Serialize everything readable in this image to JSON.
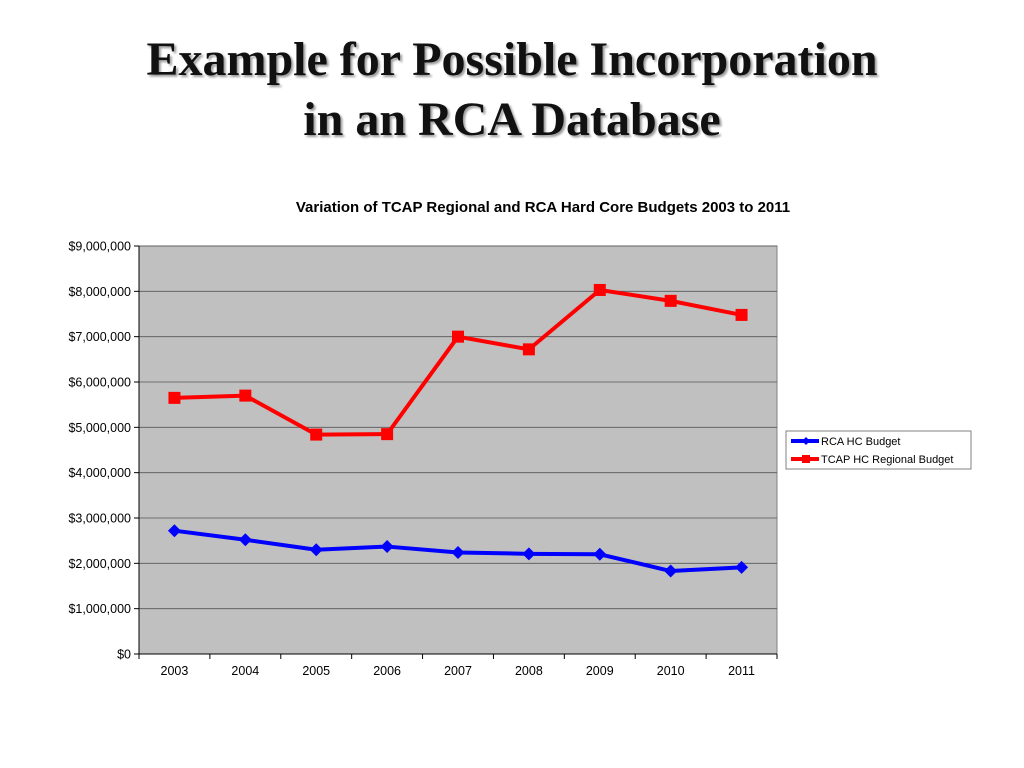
{
  "slide": {
    "title_line1": "Example for Possible Incorporation",
    "title_line2": "in an RCA Database"
  },
  "chart_data": {
    "type": "line",
    "title": "Variation of TCAP Regional and RCA Hard Core Budgets 2003 to 2011",
    "xlabel": "",
    "ylabel": "",
    "categories": [
      "2003",
      "2004",
      "2005",
      "2006",
      "2007",
      "2008",
      "2009",
      "2010",
      "2011"
    ],
    "ylim": [
      0,
      9000000
    ],
    "y_ticks": [
      0,
      1000000,
      2000000,
      3000000,
      4000000,
      5000000,
      6000000,
      7000000,
      8000000,
      9000000
    ],
    "y_tick_labels": [
      "$0",
      "$1,000,000",
      "$2,000,000",
      "$3,000,000",
      "$4,000,000",
      "$5,000,000",
      "$6,000,000",
      "$7,000,000",
      "$8,000,000",
      "$9,000,000"
    ],
    "grid": true,
    "plot_background": "#c0c0c0",
    "legend_position": "right",
    "series": [
      {
        "name": "RCA HC Budget",
        "color": "#0000ff",
        "marker": "diamond",
        "values": [
          2720000,
          2520000,
          2300000,
          2370000,
          2240000,
          2210000,
          2200000,
          1830000,
          1910000
        ]
      },
      {
        "name": "TCAP HC Regional Budget",
        "color": "#ff0000",
        "marker": "square",
        "values": [
          5650000,
          5700000,
          4840000,
          4850000,
          7000000,
          6720000,
          8030000,
          7790000,
          7480000
        ]
      }
    ]
  }
}
